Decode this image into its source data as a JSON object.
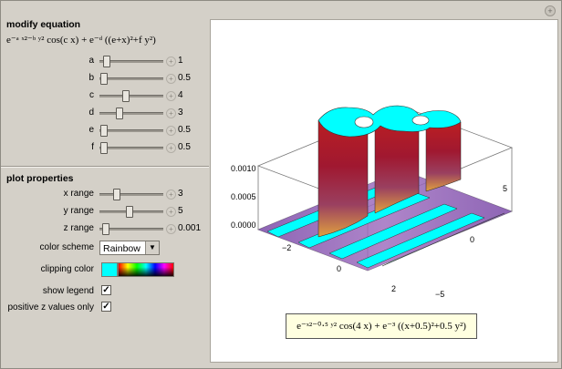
{
  "modify": {
    "title": "modify equation",
    "equation": "e⁻ᵃ ˣ²⁻ᵇ ʸ² cos(c x) + e⁻ᵈ ((e+x)²+f y²)",
    "sliders": [
      {
        "label": "a",
        "value": "1",
        "pos": 0.1
      },
      {
        "label": "b",
        "value": "0.5",
        "pos": 0.05
      },
      {
        "label": "c",
        "value": "4",
        "pos": 0.4
      },
      {
        "label": "d",
        "value": "3",
        "pos": 0.3
      },
      {
        "label": "e",
        "value": "0.5",
        "pos": 0.05
      },
      {
        "label": "f",
        "value": "0.5",
        "pos": 0.05
      }
    ]
  },
  "plot_props": {
    "title": "plot properties",
    "sliders": [
      {
        "label": "x range",
        "value": "3",
        "pos": 0.25
      },
      {
        "label": "y range",
        "value": "5",
        "pos": 0.45
      },
      {
        "label": "z range",
        "value": "0.001",
        "pos": 0.08
      }
    ],
    "color_scheme": {
      "label": "color scheme",
      "value": "Rainbow"
    },
    "clipping_color": {
      "label": "clipping color",
      "color": "#00ffff"
    },
    "show_legend": {
      "label": "show legend",
      "checked": "✓"
    },
    "positive_z": {
      "label": "positive z values only",
      "checked": "✓"
    }
  },
  "plot": {
    "z_ticks": [
      "0.0010",
      "0.0005",
      "0.0000"
    ],
    "x_ticks": [
      "−2",
      "0",
      "2"
    ],
    "y_ticks": [
      "5",
      "0",
      "−5"
    ],
    "legend": "e⁻ˣ²⁻⁰⋅⁵ ʸ² cos(4 x) + e⁻³ ((x+0.5)²+0.5 y²)"
  },
  "colors": {
    "clip": "#00ffff",
    "legend_bg": "#ffffe0"
  }
}
